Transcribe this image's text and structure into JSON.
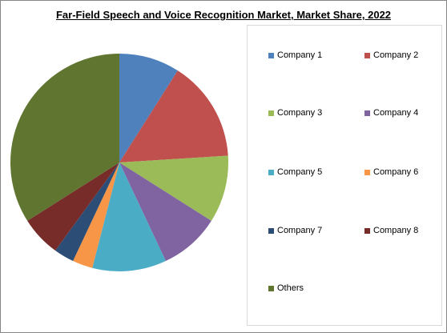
{
  "chart_data": {
    "type": "pie",
    "title": "Far-Field Speech and Voice Recognition Market, Market Share, 2022",
    "legend_placement": "right",
    "series": [
      {
        "name": "Company 1",
        "value": 9,
        "color": "#4f81bd"
      },
      {
        "name": "Company 2",
        "value": 15,
        "color": "#c0504d"
      },
      {
        "name": "Company 3",
        "value": 10,
        "color": "#9bbb59"
      },
      {
        "name": "Company 4",
        "value": 9,
        "color": "#8064a2"
      },
      {
        "name": "Company 5",
        "value": 11,
        "color": "#4bacc6"
      },
      {
        "name": "Company 6",
        "value": 3,
        "color": "#f79646"
      },
      {
        "name": "Company 7",
        "value": 3,
        "color": "#2c4d75"
      },
      {
        "name": "Company 8",
        "value": 6,
        "color": "#772c2a"
      },
      {
        "name": "Others",
        "value": 34,
        "color": "#5f7530"
      }
    ]
  }
}
